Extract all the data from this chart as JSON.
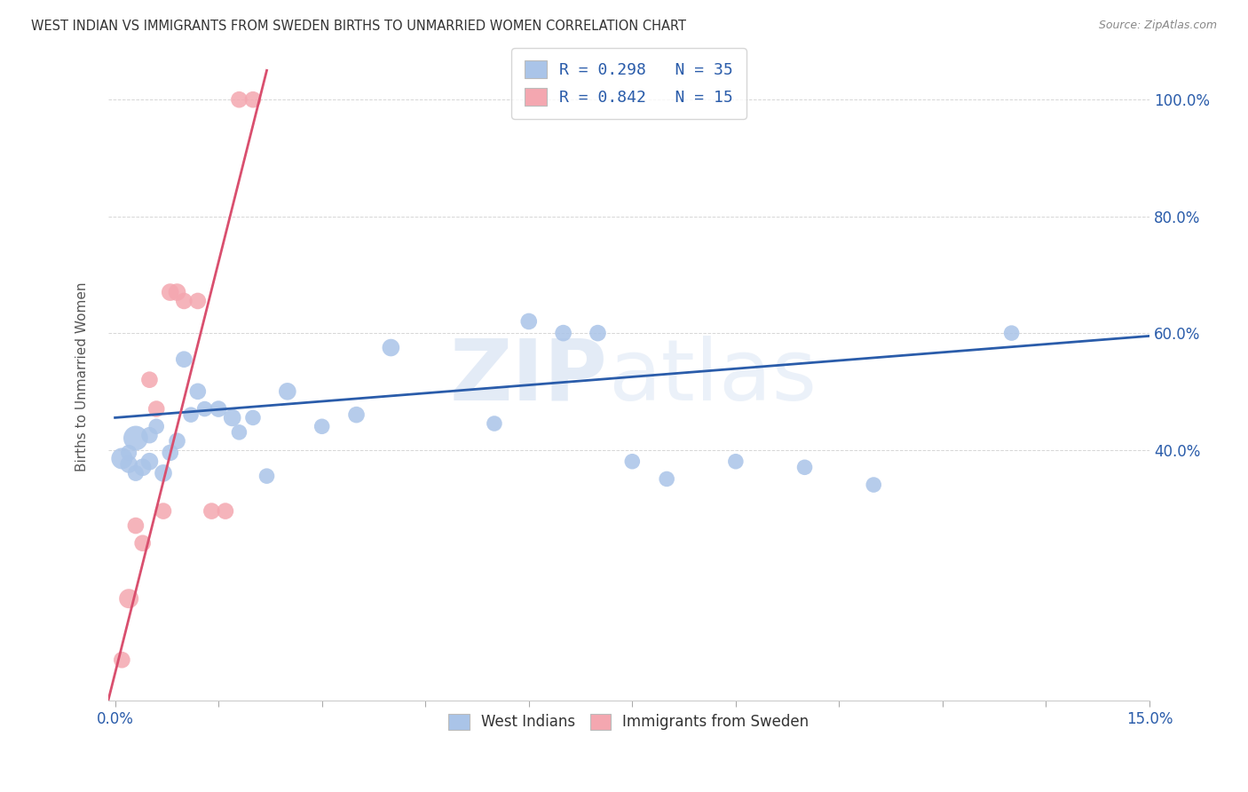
{
  "title": "WEST INDIAN VS IMMIGRANTS FROM SWEDEN BIRTHS TO UNMARRIED WOMEN CORRELATION CHART",
  "source": "Source: ZipAtlas.com",
  "ylabel": "Births to Unmarried Women",
  "watermark": "ZIPatlas",
  "legend_label1": "R = 0.298   N = 35",
  "legend_label2": "R = 0.842   N = 15",
  "legend_bottom1": "West Indians",
  "legend_bottom2": "Immigrants from Sweden",
  "blue_color": "#aac4e8",
  "pink_color": "#f4a7b0",
  "blue_line_color": "#2a5caa",
  "pink_line_color": "#d94f6e",
  "blue_text_color": "#2a5caa",
  "west_indians_x": [
    0.001,
    0.002,
    0.002,
    0.003,
    0.003,
    0.004,
    0.005,
    0.005,
    0.006,
    0.007,
    0.008,
    0.009,
    0.01,
    0.011,
    0.012,
    0.013,
    0.015,
    0.017,
    0.018,
    0.02,
    0.022,
    0.025,
    0.03,
    0.035,
    0.04,
    0.055,
    0.06,
    0.065,
    0.07,
    0.075,
    0.08,
    0.09,
    0.1,
    0.11,
    0.13
  ],
  "west_indians_y": [
    0.385,
    0.395,
    0.375,
    0.42,
    0.36,
    0.37,
    0.38,
    0.425,
    0.44,
    0.36,
    0.395,
    0.415,
    0.555,
    0.46,
    0.5,
    0.47,
    0.47,
    0.455,
    0.43,
    0.455,
    0.355,
    0.5,
    0.44,
    0.46,
    0.575,
    0.445,
    0.62,
    0.6,
    0.6,
    0.38,
    0.35,
    0.38,
    0.37,
    0.34,
    0.6
  ],
  "west_indians_size": [
    300,
    170,
    200,
    400,
    170,
    200,
    200,
    180,
    160,
    200,
    180,
    180,
    180,
    160,
    180,
    160,
    180,
    200,
    160,
    160,
    160,
    200,
    160,
    180,
    200,
    160,
    180,
    180,
    180,
    160,
    160,
    160,
    160,
    160,
    160
  ],
  "sweden_x": [
    0.001,
    0.002,
    0.003,
    0.004,
    0.005,
    0.006,
    0.007,
    0.008,
    0.009,
    0.01,
    0.012,
    0.014,
    0.016,
    0.018,
    0.02
  ],
  "sweden_y": [
    0.04,
    0.145,
    0.27,
    0.24,
    0.52,
    0.47,
    0.295,
    0.67,
    0.67,
    0.655,
    0.655,
    0.295,
    0.295,
    1.0,
    1.0
  ],
  "sweden_size": [
    180,
    250,
    180,
    180,
    180,
    180,
    180,
    200,
    200,
    180,
    180,
    180,
    180,
    180,
    180
  ],
  "xmin": -0.001,
  "xmax": 0.15,
  "ymin": -0.03,
  "ymax": 1.08,
  "y_tick_positions": [
    0.4,
    0.6,
    0.8,
    1.0
  ],
  "y_tick_labels": [
    "40.0%",
    "60.0%",
    "80.0%",
    "100.0%"
  ],
  "x_ticks": [
    0.0,
    0.015,
    0.03,
    0.045,
    0.06,
    0.075,
    0.09,
    0.105,
    0.12,
    0.135,
    0.15
  ],
  "blue_trendline_x": [
    0.0,
    0.15
  ],
  "blue_trendline_y": [
    0.455,
    0.595
  ],
  "pink_trendline_x": [
    -0.001,
    0.022
  ],
  "pink_trendline_y": [
    -0.03,
    1.05
  ]
}
